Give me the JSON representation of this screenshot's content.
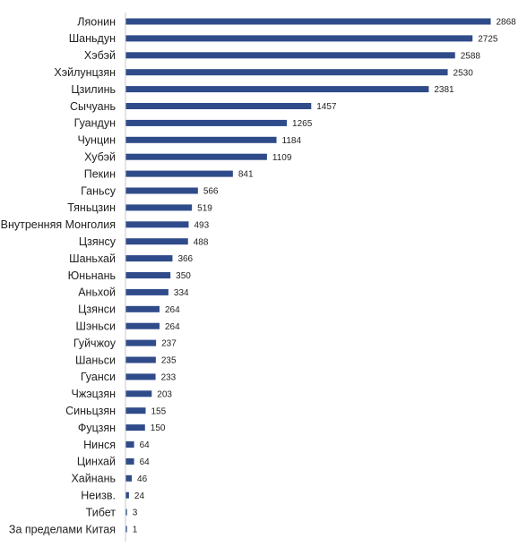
{
  "chart_data": {
    "type": "bar",
    "orientation": "horizontal",
    "title": "",
    "xlabel": "",
    "ylabel": "",
    "grid": false,
    "legend": "none",
    "bar_color": "#2f4b8a",
    "xlim": [
      0,
      3000
    ],
    "categories": [
      "Ляонин",
      "Шаньдун",
      "Хэбэй",
      "Хэйлунцзян",
      "Цзилинь",
      "Сычуань",
      "Гуандун",
      "Чунцин",
      "Хубэй",
      "Пекин",
      "Ганьсу",
      "Тяньцзин",
      "Внутренняя Монголия",
      "Цзянсу",
      "Шаньхай",
      "Юньнань",
      "Аньхой",
      "Цзянси",
      "Шэньси",
      "Гуйчжоу",
      "Шаньси",
      "Гуанси",
      "Чжэцзян",
      "Синьцзян",
      "Фуцзян",
      "Нинся",
      "Цинхай",
      "Хайнань",
      "Неизв.",
      "Тибет",
      "За пределами Китая"
    ],
    "values": [
      2868,
      2725,
      2588,
      2530,
      2381,
      1457,
      1265,
      1184,
      1109,
      841,
      566,
      519,
      493,
      488,
      366,
      350,
      334,
      264,
      264,
      237,
      235,
      233,
      203,
      155,
      150,
      64,
      64,
      46,
      24,
      3,
      1
    ]
  }
}
